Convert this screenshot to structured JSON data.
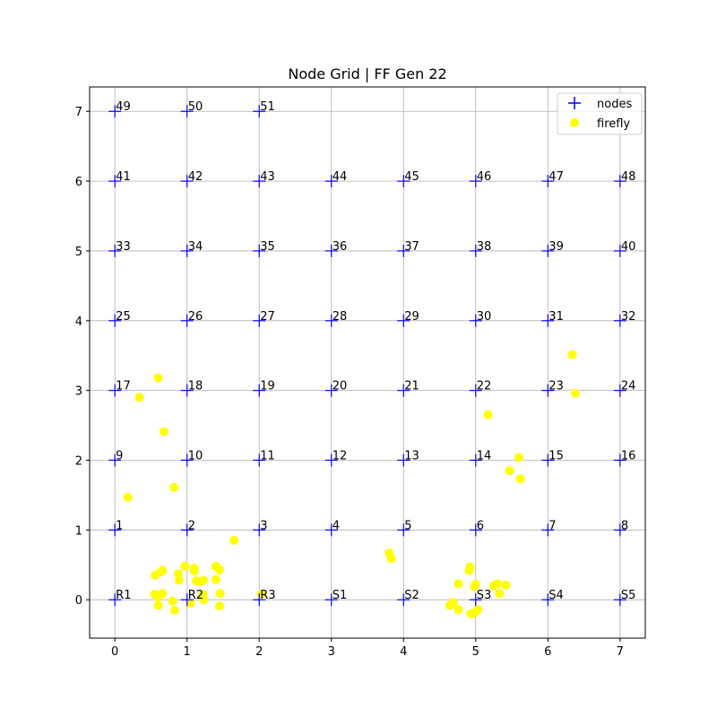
{
  "chart_data": {
    "type": "scatter",
    "title": "Node Grid | FF Gen 22",
    "xlabel": "",
    "ylabel": "",
    "xlim": [
      -0.35,
      7.35
    ],
    "ylim": [
      -0.55,
      7.35
    ],
    "xticks": [
      0,
      1,
      2,
      3,
      4,
      5,
      6,
      7
    ],
    "yticks": [
      0,
      1,
      2,
      3,
      4,
      5,
      6,
      7
    ],
    "grid": true,
    "legend_position": "top-right",
    "series": [
      {
        "name": "nodes",
        "marker": "plus",
        "color": "#0000ff",
        "points": [
          {
            "x": 0,
            "y": 0,
            "label": "R1"
          },
          {
            "x": 1,
            "y": 0,
            "label": "R2"
          },
          {
            "x": 2,
            "y": 0,
            "label": "R3"
          },
          {
            "x": 3,
            "y": 0,
            "label": "S1"
          },
          {
            "x": 4,
            "y": 0,
            "label": "S2"
          },
          {
            "x": 5,
            "y": 0,
            "label": "S3"
          },
          {
            "x": 6,
            "y": 0,
            "label": "S4"
          },
          {
            "x": 7,
            "y": 0,
            "label": "S5"
          },
          {
            "x": 0,
            "y": 1,
            "label": "1"
          },
          {
            "x": 1,
            "y": 1,
            "label": "2"
          },
          {
            "x": 2,
            "y": 1,
            "label": "3"
          },
          {
            "x": 3,
            "y": 1,
            "label": "4"
          },
          {
            "x": 4,
            "y": 1,
            "label": "5"
          },
          {
            "x": 5,
            "y": 1,
            "label": "6"
          },
          {
            "x": 6,
            "y": 1,
            "label": "7"
          },
          {
            "x": 7,
            "y": 1,
            "label": "8"
          },
          {
            "x": 0,
            "y": 2,
            "label": "9"
          },
          {
            "x": 1,
            "y": 2,
            "label": "10"
          },
          {
            "x": 2,
            "y": 2,
            "label": "11"
          },
          {
            "x": 3,
            "y": 2,
            "label": "12"
          },
          {
            "x": 4,
            "y": 2,
            "label": "13"
          },
          {
            "x": 5,
            "y": 2,
            "label": "14"
          },
          {
            "x": 6,
            "y": 2,
            "label": "15"
          },
          {
            "x": 7,
            "y": 2,
            "label": "16"
          },
          {
            "x": 0,
            "y": 3,
            "label": "17"
          },
          {
            "x": 1,
            "y": 3,
            "label": "18"
          },
          {
            "x": 2,
            "y": 3,
            "label": "19"
          },
          {
            "x": 3,
            "y": 3,
            "label": "20"
          },
          {
            "x": 4,
            "y": 3,
            "label": "21"
          },
          {
            "x": 5,
            "y": 3,
            "label": "22"
          },
          {
            "x": 6,
            "y": 3,
            "label": "23"
          },
          {
            "x": 7,
            "y": 3,
            "label": "24"
          },
          {
            "x": 0,
            "y": 4,
            "label": "25"
          },
          {
            "x": 1,
            "y": 4,
            "label": "26"
          },
          {
            "x": 2,
            "y": 4,
            "label": "27"
          },
          {
            "x": 3,
            "y": 4,
            "label": "28"
          },
          {
            "x": 4,
            "y": 4,
            "label": "29"
          },
          {
            "x": 5,
            "y": 4,
            "label": "30"
          },
          {
            "x": 6,
            "y": 4,
            "label": "31"
          },
          {
            "x": 7,
            "y": 4,
            "label": "32"
          },
          {
            "x": 0,
            "y": 5,
            "label": "33"
          },
          {
            "x": 1,
            "y": 5,
            "label": "34"
          },
          {
            "x": 2,
            "y": 5,
            "label": "35"
          },
          {
            "x": 3,
            "y": 5,
            "label": "36"
          },
          {
            "x": 4,
            "y": 5,
            "label": "37"
          },
          {
            "x": 5,
            "y": 5,
            "label": "38"
          },
          {
            "x": 6,
            "y": 5,
            "label": "39"
          },
          {
            "x": 7,
            "y": 5,
            "label": "40"
          },
          {
            "x": 0,
            "y": 6,
            "label": "41"
          },
          {
            "x": 1,
            "y": 6,
            "label": "42"
          },
          {
            "x": 2,
            "y": 6,
            "label": "43"
          },
          {
            "x": 3,
            "y": 6,
            "label": "44"
          },
          {
            "x": 4,
            "y": 6,
            "label": "45"
          },
          {
            "x": 5,
            "y": 6,
            "label": "46"
          },
          {
            "x": 6,
            "y": 6,
            "label": "47"
          },
          {
            "x": 7,
            "y": 6,
            "label": "48"
          },
          {
            "x": 0,
            "y": 7,
            "label": "49"
          },
          {
            "x": 1,
            "y": 7,
            "label": "50"
          },
          {
            "x": 2,
            "y": 7,
            "label": "51"
          }
        ]
      },
      {
        "name": "firefly",
        "marker": "circle",
        "color": "#ffff00",
        "points": [
          {
            "x": 0.6,
            "y": 3.18
          },
          {
            "x": 0.34,
            "y": 2.9
          },
          {
            "x": 0.68,
            "y": 2.41
          },
          {
            "x": 0.82,
            "y": 1.61
          },
          {
            "x": 0.18,
            "y": 1.47
          },
          {
            "x": 1.65,
            "y": 0.85
          },
          {
            "x": 0.56,
            "y": 0.35
          },
          {
            "x": 0.66,
            "y": 0.42
          },
          {
            "x": 0.64,
            "y": 0.4
          },
          {
            "x": 0.88,
            "y": 0.37
          },
          {
            "x": 0.97,
            "y": 0.48
          },
          {
            "x": 1.1,
            "y": 0.45
          },
          {
            "x": 1.1,
            "y": 0.41
          },
          {
            "x": 1.4,
            "y": 0.48
          },
          {
            "x": 1.45,
            "y": 0.43
          },
          {
            "x": 0.89,
            "y": 0.28
          },
          {
            "x": 1.13,
            "y": 0.27
          },
          {
            "x": 1.18,
            "y": 0.26
          },
          {
            "x": 1.23,
            "y": 0.28
          },
          {
            "x": 1.4,
            "y": 0.29
          },
          {
            "x": 0.55,
            "y": 0.08
          },
          {
            "x": 0.6,
            "y": 0.04
          },
          {
            "x": 0.66,
            "y": 0.09
          },
          {
            "x": 0.6,
            "y": -0.08
          },
          {
            "x": 0.8,
            "y": -0.02
          },
          {
            "x": 0.83,
            "y": -0.15
          },
          {
            "x": 1.05,
            "y": -0.05
          },
          {
            "x": 1.22,
            "y": 0.08
          },
          {
            "x": 1.23,
            "y": 0.0
          },
          {
            "x": 1.46,
            "y": 0.09
          },
          {
            "x": 1.45,
            "y": -0.09
          },
          {
            "x": 2.03,
            "y": 0.08
          },
          {
            "x": 3.8,
            "y": 0.67
          },
          {
            "x": 3.83,
            "y": 0.59
          },
          {
            "x": 4.92,
            "y": 0.47
          },
          {
            "x": 4.91,
            "y": 0.42
          },
          {
            "x": 4.76,
            "y": 0.23
          },
          {
            "x": 4.98,
            "y": 0.19
          },
          {
            "x": 5.0,
            "y": 0.22
          },
          {
            "x": 5.25,
            "y": 0.2
          },
          {
            "x": 5.3,
            "y": 0.23
          },
          {
            "x": 5.42,
            "y": 0.21
          },
          {
            "x": 5.33,
            "y": 0.09
          },
          {
            "x": 4.69,
            "y": -0.04
          },
          {
            "x": 4.64,
            "y": -0.08
          },
          {
            "x": 4.76,
            "y": -0.14
          },
          {
            "x": 4.93,
            "y": -0.2
          },
          {
            "x": 4.98,
            "y": -0.19
          },
          {
            "x": 5.03,
            "y": -0.14
          },
          {
            "x": 5.17,
            "y": 2.65
          },
          {
            "x": 5.47,
            "y": 1.85
          },
          {
            "x": 5.6,
            "y": 2.04
          },
          {
            "x": 5.62,
            "y": 1.73
          },
          {
            "x": 6.34,
            "y": 3.51
          },
          {
            "x": 6.38,
            "y": 2.96
          }
        ]
      }
    ]
  }
}
